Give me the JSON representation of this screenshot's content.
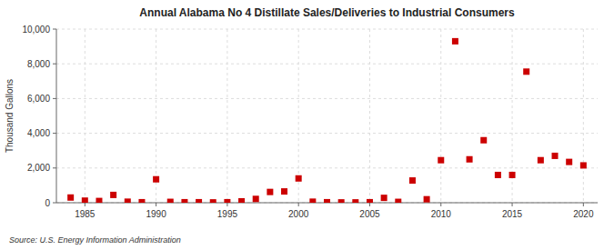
{
  "chart_data": {
    "type": "scatter",
    "title": "Annual Alabama No 4 Distillate Sales/Deliveries to Industrial Consumers",
    "ylabel": "Thousand Gallons",
    "annotations": [
      "Source: U.S. Energy Information Administration"
    ],
    "color": "#cc0000",
    "marker": "square",
    "grid": true,
    "xlim": [
      1983,
      2021
    ],
    "ylim": [
      0,
      10000
    ],
    "xticks": [
      1985,
      1990,
      1995,
      2000,
      2005,
      2010,
      2015,
      2020
    ],
    "yticks": [
      0,
      {
        "value": 2000,
        "label": "2,000"
      },
      {
        "value": 4000,
        "label": "4,000"
      },
      {
        "value": 6000,
        "label": "6,000"
      },
      {
        "value": 8000,
        "label": "8,000"
      },
      {
        "value": 10000,
        "label": "10,000"
      }
    ],
    "x": [
      1984,
      1985,
      1986,
      1987,
      1988,
      1989,
      1990,
      1991,
      1992,
      1993,
      1994,
      1995,
      1996,
      1997,
      1998,
      1999,
      2000,
      2001,
      2002,
      2003,
      2004,
      2005,
      2006,
      2007,
      2008,
      2009,
      2010,
      2011,
      2012,
      2013,
      2014,
      2015,
      2016,
      2017,
      2018,
      2019,
      2020
    ],
    "values": [
      300,
      120,
      100,
      450,
      60,
      30,
      1350,
      50,
      30,
      30,
      20,
      30,
      80,
      220,
      620,
      650,
      1400,
      60,
      30,
      20,
      20,
      30,
      280,
      50,
      1280,
      200,
      2450,
      9300,
      2500,
      3600,
      1600,
      1600,
      7550,
      2450,
      2700,
      2350,
      2150
    ]
  }
}
